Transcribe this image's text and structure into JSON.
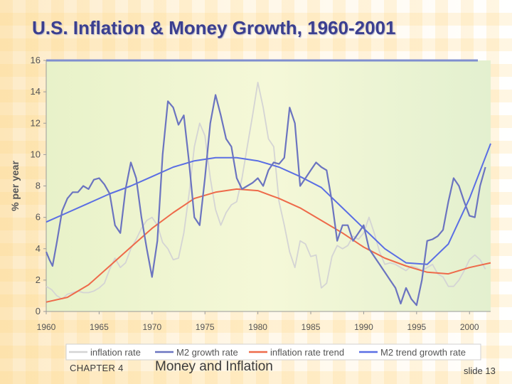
{
  "slide": {
    "title": "U.S. Inflation & Money Growth, 1960-2001",
    "chapter": "CHAPTER 4",
    "topic": "Money and Inflation",
    "slide_number": "slide 13"
  },
  "colors": {
    "title": "#3b3f8f",
    "inflation": "#d4d4d4",
    "m2": "#6b74c0",
    "inflation_trend": "#ee6a4a",
    "m2_trend": "#5a6ee4"
  },
  "chart_data": {
    "type": "line",
    "xlabel": "",
    "ylabel": "% per year",
    "xlim": [
      1960,
      2002
    ],
    "ylim": [
      0,
      16
    ],
    "x_ticks": [
      1960,
      1965,
      1970,
      1975,
      1980,
      1985,
      1990,
      1995,
      2000
    ],
    "y_ticks": [
      0,
      2,
      4,
      6,
      8,
      10,
      12,
      14,
      16
    ],
    "grid": false,
    "legend_position": "bottom",
    "series": [
      {
        "name": "inflation rate",
        "color": "#d4d4d4",
        "points": [
          [
            1960,
            1.6
          ],
          [
            1960.5,
            1.4
          ],
          [
            1961,
            1.0
          ],
          [
            1961.5,
            0.8
          ],
          [
            1962,
            1.1
          ],
          [
            1962.5,
            1.2
          ],
          [
            1963,
            1.3
          ],
          [
            1963.5,
            1.2
          ],
          [
            1964,
            1.2
          ],
          [
            1964.5,
            1.3
          ],
          [
            1965,
            1.5
          ],
          [
            1965.5,
            1.8
          ],
          [
            1966,
            2.7
          ],
          [
            1966.5,
            3.4
          ],
          [
            1967,
            2.8
          ],
          [
            1967.5,
            3.1
          ],
          [
            1968,
            4.0
          ],
          [
            1968.5,
            4.6
          ],
          [
            1969,
            5.3
          ],
          [
            1969.5,
            5.8
          ],
          [
            1970,
            6.0
          ],
          [
            1970.5,
            5.5
          ],
          [
            1971,
            4.4
          ],
          [
            1971.5,
            4.0
          ],
          [
            1972,
            3.3
          ],
          [
            1972.5,
            3.4
          ],
          [
            1973,
            5.0
          ],
          [
            1973.5,
            7.5
          ],
          [
            1974,
            10.5
          ],
          [
            1974.5,
            12.0
          ],
          [
            1975,
            11.2
          ],
          [
            1975.5,
            8.5
          ],
          [
            1976,
            6.5
          ],
          [
            1976.5,
            5.5
          ],
          [
            1977,
            6.3
          ],
          [
            1977.5,
            6.8
          ],
          [
            1978,
            7.0
          ],
          [
            1978.5,
            8.5
          ],
          [
            1979,
            10.5
          ],
          [
            1979.5,
            12.5
          ],
          [
            1980,
            14.6
          ],
          [
            1980.5,
            13.0
          ],
          [
            1981,
            11.0
          ],
          [
            1981.5,
            10.5
          ],
          [
            1982,
            7.0
          ],
          [
            1982.5,
            5.5
          ],
          [
            1983,
            3.8
          ],
          [
            1983.5,
            2.8
          ],
          [
            1984,
            4.5
          ],
          [
            1984.5,
            4.3
          ],
          [
            1985,
            3.5
          ],
          [
            1985.5,
            3.6
          ],
          [
            1986,
            1.5
          ],
          [
            1986.5,
            1.8
          ],
          [
            1987,
            3.5
          ],
          [
            1987.5,
            4.2
          ],
          [
            1988,
            4.0
          ],
          [
            1988.5,
            4.2
          ],
          [
            1989,
            4.8
          ],
          [
            1989.5,
            4.6
          ],
          [
            1990,
            5.0
          ],
          [
            1990.5,
            6.0
          ],
          [
            1991,
            5.0
          ],
          [
            1991.5,
            3.8
          ],
          [
            1992,
            3.0
          ],
          [
            1992.5,
            3.1
          ],
          [
            1993,
            3.0
          ],
          [
            1993.5,
            2.8
          ],
          [
            1994,
            2.6
          ],
          [
            1994.5,
            2.9
          ],
          [
            1995,
            2.8
          ],
          [
            1995.5,
            2.6
          ],
          [
            1996,
            2.8
          ],
          [
            1996.5,
            3.0
          ],
          [
            1997,
            2.4
          ],
          [
            1997.5,
            2.2
          ],
          [
            1998,
            1.6
          ],
          [
            1998.5,
            1.6
          ],
          [
            1999,
            2.0
          ],
          [
            1999.5,
            2.6
          ],
          [
            2000,
            3.3
          ],
          [
            2000.5,
            3.6
          ],
          [
            2001,
            3.3
          ],
          [
            2001.5,
            2.7
          ]
        ]
      },
      {
        "name": "M2 growth rate",
        "color": "#6b74c0",
        "points": [
          [
            1960,
            3.8
          ],
          [
            1960.3,
            3.3
          ],
          [
            1960.6,
            2.9
          ],
          [
            1961,
            4.4
          ],
          [
            1961.5,
            6.4
          ],
          [
            1962,
            7.2
          ],
          [
            1962.5,
            7.6
          ],
          [
            1963,
            7.6
          ],
          [
            1963.5,
            8.0
          ],
          [
            1964,
            7.8
          ],
          [
            1964.5,
            8.4
          ],
          [
            1965,
            8.5
          ],
          [
            1965.5,
            8.1
          ],
          [
            1966,
            7.5
          ],
          [
            1966.5,
            5.5
          ],
          [
            1967,
            5.0
          ],
          [
            1967.5,
            7.8
          ],
          [
            1968,
            9.5
          ],
          [
            1968.5,
            8.5
          ],
          [
            1969,
            6.0
          ],
          [
            1969.5,
            4.0
          ],
          [
            1970,
            2.2
          ],
          [
            1970.5,
            4.5
          ],
          [
            1971,
            10.0
          ],
          [
            1971.5,
            13.4
          ],
          [
            1972,
            13.0
          ],
          [
            1972.5,
            11.9
          ],
          [
            1973,
            12.5
          ],
          [
            1973.5,
            9.5
          ],
          [
            1974,
            6.0
          ],
          [
            1974.5,
            5.5
          ],
          [
            1975,
            8.5
          ],
          [
            1975.5,
            12.0
          ],
          [
            1976,
            13.8
          ],
          [
            1976.5,
            12.5
          ],
          [
            1977,
            11.0
          ],
          [
            1977.5,
            10.5
          ],
          [
            1978,
            8.5
          ],
          [
            1978.5,
            7.8
          ],
          [
            1979,
            8.0
          ],
          [
            1979.5,
            8.2
          ],
          [
            1980,
            8.5
          ],
          [
            1980.5,
            8.0
          ],
          [
            1981,
            9.0
          ],
          [
            1981.5,
            9.5
          ],
          [
            1982,
            9.4
          ],
          [
            1982.5,
            9.8
          ],
          [
            1983,
            13.0
          ],
          [
            1983.5,
            12.0
          ],
          [
            1984,
            8.0
          ],
          [
            1984.5,
            8.5
          ],
          [
            1985,
            9.0
          ],
          [
            1985.5,
            9.5
          ],
          [
            1986,
            9.2
          ],
          [
            1986.5,
            9.0
          ],
          [
            1987,
            7.0
          ],
          [
            1987.5,
            4.5
          ],
          [
            1988,
            5.5
          ],
          [
            1988.5,
            5.5
          ],
          [
            1989,
            4.5
          ],
          [
            1989.5,
            5.0
          ],
          [
            1990,
            5.5
          ],
          [
            1990.5,
            4.0
          ],
          [
            1991,
            3.5
          ],
          [
            1991.5,
            3.0
          ],
          [
            1992,
            2.5
          ],
          [
            1992.5,
            2.0
          ],
          [
            1993,
            1.5
          ],
          [
            1993.5,
            0.5
          ],
          [
            1994,
            1.5
          ],
          [
            1994.5,
            0.8
          ],
          [
            1995,
            0.4
          ],
          [
            1995.5,
            2.0
          ],
          [
            1996,
            4.5
          ],
          [
            1996.5,
            4.6
          ],
          [
            1997,
            4.8
          ],
          [
            1997.5,
            5.2
          ],
          [
            1998,
            7.0
          ],
          [
            1998.5,
            8.5
          ],
          [
            1999,
            8.0
          ],
          [
            1999.5,
            7.0
          ],
          [
            2000,
            6.1
          ],
          [
            2000.5,
            6.0
          ],
          [
            2001,
            8.0
          ],
          [
            2001.5,
            9.2
          ]
        ]
      },
      {
        "name": "inflation rate trend",
        "color": "#ee6a4a",
        "points": [
          [
            1960,
            0.6
          ],
          [
            1962,
            0.9
          ],
          [
            1964,
            1.7
          ],
          [
            1966,
            2.9
          ],
          [
            1968,
            4.1
          ],
          [
            1970,
            5.3
          ],
          [
            1972,
            6.3
          ],
          [
            1974,
            7.2
          ],
          [
            1976,
            7.6
          ],
          [
            1978,
            7.8
          ],
          [
            1980,
            7.7
          ],
          [
            1982,
            7.2
          ],
          [
            1984,
            6.6
          ],
          [
            1986,
            5.8
          ],
          [
            1988,
            5.0
          ],
          [
            1990,
            4.1
          ],
          [
            1992,
            3.4
          ],
          [
            1994,
            2.9
          ],
          [
            1996,
            2.5
          ],
          [
            1998,
            2.4
          ],
          [
            2000,
            2.8
          ],
          [
            2002,
            3.1
          ]
        ]
      },
      {
        "name": "M2 trend growth rate",
        "color": "#5a6ee4",
        "points": [
          [
            1960,
            5.7
          ],
          [
            1962,
            6.3
          ],
          [
            1964,
            6.9
          ],
          [
            1966,
            7.5
          ],
          [
            1968,
            8.0
          ],
          [
            1970,
            8.6
          ],
          [
            1972,
            9.2
          ],
          [
            1974,
            9.6
          ],
          [
            1976,
            9.8
          ],
          [
            1978,
            9.8
          ],
          [
            1980,
            9.6
          ],
          [
            1982,
            9.2
          ],
          [
            1984,
            8.6
          ],
          [
            1986,
            7.9
          ],
          [
            1988,
            6.6
          ],
          [
            1990,
            5.3
          ],
          [
            1992,
            4.0
          ],
          [
            1994,
            3.1
          ],
          [
            1996,
            3.0
          ],
          [
            1998,
            4.3
          ],
          [
            2000,
            7.2
          ],
          [
            2002,
            10.7
          ]
        ]
      }
    ]
  }
}
